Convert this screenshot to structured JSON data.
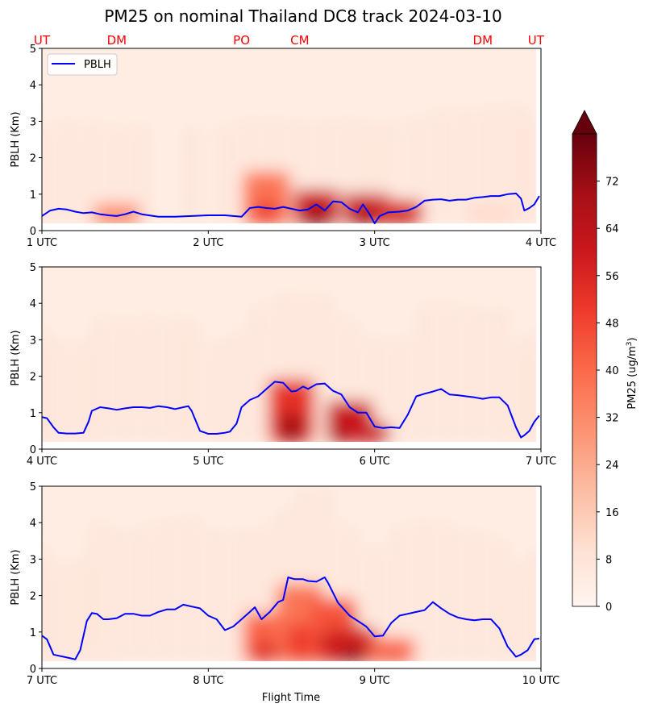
{
  "chart_data": {
    "type": "heatmap",
    "title": "PM25 on nominal Thailand DC8 track 2024-03-10",
    "xlabel": "Flight Time",
    "site_labels": [
      {
        "label": "UT",
        "hour": 1.0
      },
      {
        "label": "DM",
        "hour": 1.45
      },
      {
        "label": "PO",
        "hour": 2.2
      },
      {
        "label": "CM",
        "hour": 2.55
      },
      {
        "label": "DM",
        "hour": 3.65
      },
      {
        "label": "UT",
        "hour": 3.97
      }
    ],
    "colors": {
      "site_label": "#ff0000",
      "pblh_line": "#0000ff",
      "colormap": "Reds"
    },
    "colorbar": {
      "label": "PM25 (ug/m3)",
      "label_main": "PM25 (ug/m",
      "label_sup": "3",
      "label_end": ")",
      "range": [
        0,
        80
      ],
      "extend": "max",
      "ticks": [
        0,
        8,
        16,
        24,
        32,
        40,
        48,
        56,
        64,
        72
      ]
    },
    "legend": {
      "entries": [
        "PBLH"
      ],
      "location": "upper-left of top panel"
    },
    "panels": [
      {
        "ylabel": "PBLH (Km)",
        "ylim": [
          0,
          5
        ],
        "yticks": [
          0,
          1,
          2,
          3,
          4,
          5
        ],
        "xlim": [
          1,
          4
        ],
        "xticks": [
          {
            "v": 1,
            "label": "1 UTC"
          },
          {
            "v": 2,
            "label": "2 UTC"
          },
          {
            "v": 3,
            "label": "3 UTC"
          },
          {
            "v": 4,
            "label": "4 UTC"
          }
        ],
        "pblh": {
          "name": "PBLH",
          "x": [
            1.0,
            1.05,
            1.1,
            1.15,
            1.2,
            1.25,
            1.3,
            1.35,
            1.4,
            1.45,
            1.5,
            1.55,
            1.6,
            1.7,
            1.8,
            1.9,
            2.0,
            2.05,
            2.1,
            2.15,
            2.2,
            2.25,
            2.3,
            2.35,
            2.4,
            2.45,
            2.5,
            2.55,
            2.6,
            2.65,
            2.7,
            2.75,
            2.8,
            2.85,
            2.9,
            2.93,
            2.97,
            3.0,
            3.03,
            3.08,
            3.15,
            3.2,
            3.25,
            3.3,
            3.35,
            3.4,
            3.45,
            3.5,
            3.55,
            3.6,
            3.65,
            3.7,
            3.75,
            3.8,
            3.85,
            3.88,
            3.9,
            3.93,
            3.96,
            3.99
          ],
          "y": [
            0.4,
            0.55,
            0.6,
            0.58,
            0.52,
            0.48,
            0.5,
            0.45,
            0.42,
            0.4,
            0.45,
            0.52,
            0.45,
            0.38,
            0.38,
            0.4,
            0.42,
            0.42,
            0.42,
            0.4,
            0.38,
            0.62,
            0.65,
            0.62,
            0.6,
            0.65,
            0.6,
            0.55,
            0.58,
            0.72,
            0.55,
            0.8,
            0.78,
            0.6,
            0.5,
            0.72,
            0.45,
            0.2,
            0.4,
            0.5,
            0.52,
            0.55,
            0.65,
            0.82,
            0.85,
            0.86,
            0.82,
            0.85,
            0.85,
            0.9,
            0.92,
            0.95,
            0.95,
            1.0,
            1.02,
            0.88,
            0.55,
            0.62,
            0.72,
            0.95
          ]
        },
        "pm25_hotspots": [
          {
            "x": 1.45,
            "z_top": 0.4,
            "value": 45
          },
          {
            "x": 2.35,
            "z_top": 1.3,
            "value": 50
          },
          {
            "x": 2.65,
            "z_top": 0.8,
            "value": 80
          },
          {
            "x": 2.95,
            "z_top": 0.7,
            "value": 80
          },
          {
            "x": 3.15,
            "z_top": 0.5,
            "value": 75
          },
          {
            "x": 3.7,
            "z_top": 0.4,
            "value": 15
          }
        ]
      },
      {
        "ylabel": "PBLH (Km)",
        "ylim": [
          0,
          5
        ],
        "yticks": [
          0,
          1,
          2,
          3,
          4,
          5
        ],
        "xlim": [
          4,
          7
        ],
        "xticks": [
          {
            "v": 4,
            "label": "4 UTC"
          },
          {
            "v": 5,
            "label": "5 UTC"
          },
          {
            "v": 6,
            "label": "6 UTC"
          },
          {
            "v": 7,
            "label": "7 UTC"
          }
        ],
        "pblh": {
          "name": "PBLH",
          "x": [
            4.0,
            4.03,
            4.07,
            4.1,
            4.15,
            4.2,
            4.25,
            4.28,
            4.3,
            4.35,
            4.4,
            4.45,
            4.5,
            4.55,
            4.6,
            4.65,
            4.7,
            4.75,
            4.8,
            4.85,
            4.88,
            4.9,
            4.95,
            5.0,
            5.05,
            5.1,
            5.13,
            5.17,
            5.2,
            5.25,
            5.3,
            5.35,
            5.4,
            5.45,
            5.5,
            5.53,
            5.57,
            5.6,
            5.65,
            5.7,
            5.75,
            5.8,
            5.85,
            5.9,
            5.95,
            6.0,
            6.05,
            6.1,
            6.15,
            6.2,
            6.25,
            6.3,
            6.35,
            6.4,
            6.45,
            6.5,
            6.55,
            6.6,
            6.65,
            6.7,
            6.75,
            6.8,
            6.85,
            6.88,
            6.9,
            6.93,
            6.96,
            6.99
          ],
          "y": [
            0.88,
            0.85,
            0.6,
            0.45,
            0.43,
            0.43,
            0.45,
            0.75,
            1.05,
            1.15,
            1.12,
            1.08,
            1.12,
            1.15,
            1.15,
            1.13,
            1.18,
            1.15,
            1.1,
            1.15,
            1.18,
            1.05,
            0.5,
            0.42,
            0.42,
            0.45,
            0.48,
            0.7,
            1.15,
            1.35,
            1.45,
            1.65,
            1.85,
            1.82,
            1.58,
            1.6,
            1.72,
            1.65,
            1.78,
            1.8,
            1.6,
            1.5,
            1.15,
            1.0,
            1.0,
            0.62,
            0.58,
            0.6,
            0.58,
            0.95,
            1.45,
            1.52,
            1.58,
            1.65,
            1.5,
            1.48,
            1.45,
            1.42,
            1.38,
            1.42,
            1.42,
            1.2,
            0.6,
            0.32,
            0.38,
            0.5,
            0.75,
            0.92
          ]
        },
        "pm25_hotspots": [
          {
            "x": 5.5,
            "z_top": 1.6,
            "value": 70
          },
          {
            "x": 5.85,
            "z_top": 1.0,
            "value": 80
          },
          {
            "x": 5.95,
            "z_top": 0.4,
            "value": 80
          }
        ]
      },
      {
        "ylabel": "PBLH (Km)",
        "ylim": [
          0,
          5
        ],
        "yticks": [
          0,
          1,
          2,
          3,
          4,
          5
        ],
        "xlim": [
          7,
          10
        ],
        "xticks": [
          {
            "v": 7,
            "label": "7 UTC"
          },
          {
            "v": 8,
            "label": "8 UTC"
          },
          {
            "v": 9,
            "label": "9 UTC"
          },
          {
            "v": 10,
            "label": "10 UTC"
          }
        ],
        "pblh": {
          "name": "PBLH",
          "x": [
            7.0,
            7.03,
            7.07,
            7.1,
            7.15,
            7.2,
            7.23,
            7.27,
            7.3,
            7.33,
            7.37,
            7.4,
            7.45,
            7.5,
            7.55,
            7.6,
            7.65,
            7.7,
            7.75,
            7.8,
            7.85,
            7.9,
            7.95,
            8.0,
            8.05,
            8.1,
            8.15,
            8.2,
            8.25,
            8.28,
            8.32,
            8.37,
            8.42,
            8.45,
            8.48,
            8.52,
            8.57,
            8.6,
            8.65,
            8.7,
            8.72,
            8.78,
            8.85,
            8.9,
            8.95,
            9.0,
            9.05,
            9.1,
            9.15,
            9.2,
            9.25,
            9.3,
            9.35,
            9.4,
            9.45,
            9.5,
            9.55,
            9.6,
            9.65,
            9.7,
            9.75,
            9.8,
            9.85,
            9.88,
            9.92,
            9.96,
            9.99
          ],
          "y": [
            0.9,
            0.8,
            0.38,
            0.35,
            0.3,
            0.25,
            0.5,
            1.3,
            1.52,
            1.5,
            1.35,
            1.35,
            1.38,
            1.5,
            1.5,
            1.45,
            1.45,
            1.55,
            1.62,
            1.62,
            1.75,
            1.7,
            1.65,
            1.45,
            1.35,
            1.05,
            1.15,
            1.35,
            1.55,
            1.68,
            1.35,
            1.55,
            1.82,
            1.88,
            2.5,
            2.45,
            2.45,
            2.4,
            2.38,
            2.5,
            2.35,
            1.8,
            1.45,
            1.3,
            1.15,
            0.88,
            0.9,
            1.25,
            1.45,
            1.5,
            1.55,
            1.6,
            1.82,
            1.65,
            1.5,
            1.4,
            1.35,
            1.32,
            1.35,
            1.35,
            1.1,
            0.6,
            0.32,
            0.38,
            0.5,
            0.8,
            0.82
          ]
        },
        "pm25_hotspots": [
          {
            "x": 8.35,
            "z_top": 1.2,
            "value": 55
          },
          {
            "x": 8.55,
            "z_top": 2.0,
            "value": 50
          },
          {
            "x": 8.75,
            "z_top": 1.6,
            "value": 60
          },
          {
            "x": 8.87,
            "z_top": 0.8,
            "value": 78
          },
          {
            "x": 9.1,
            "z_top": 0.5,
            "value": 55
          }
        ]
      }
    ]
  }
}
